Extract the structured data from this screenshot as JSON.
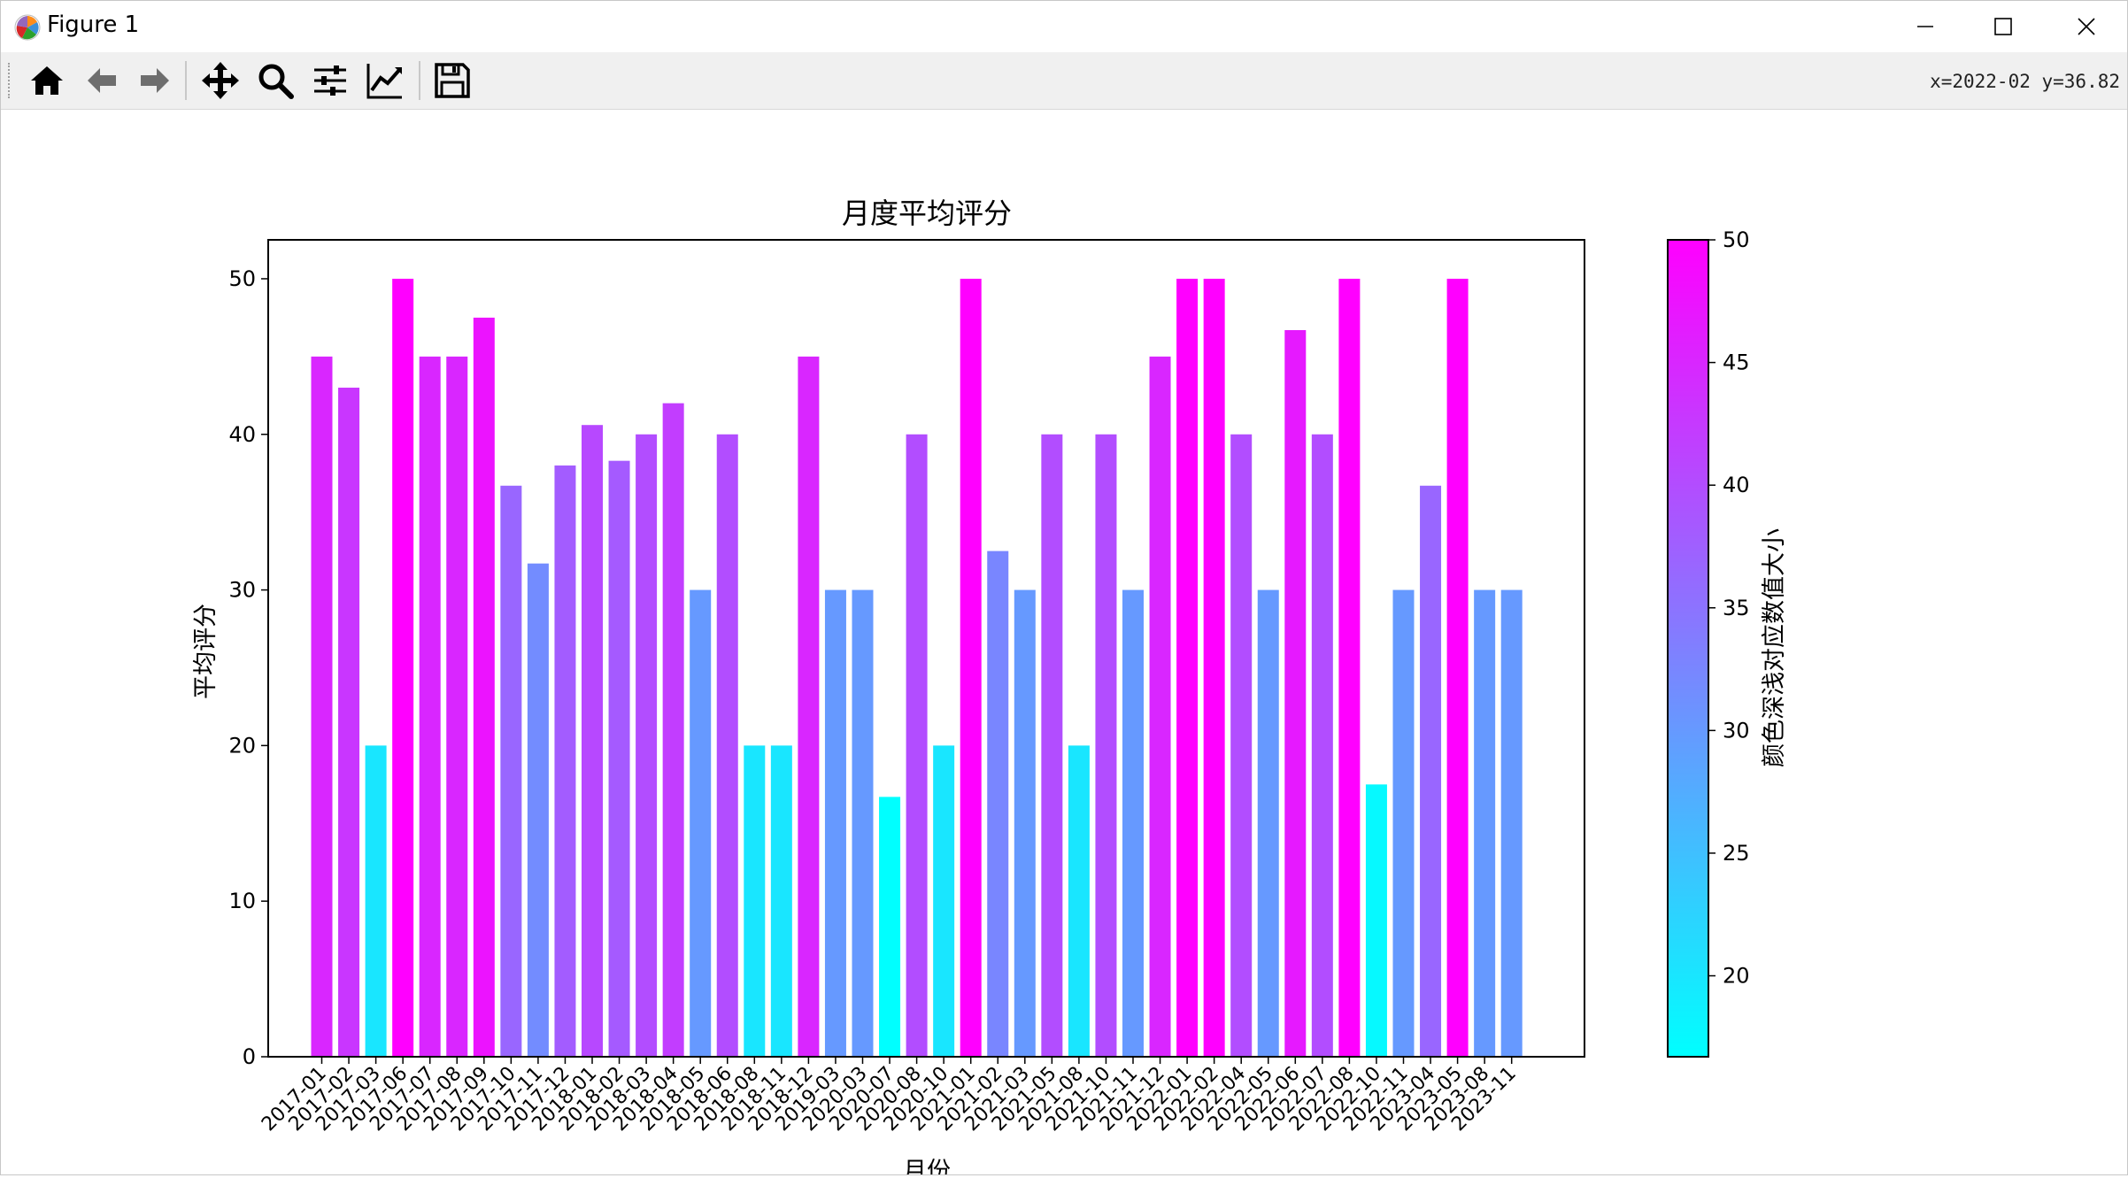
{
  "window": {
    "title": "Figure 1",
    "controls": {
      "minimize": "minimize-icon",
      "maximize": "maximize-icon",
      "close": "close-icon"
    }
  },
  "toolbar": {
    "tools": [
      {
        "name": "home-icon"
      },
      {
        "name": "back-icon"
      },
      {
        "name": "forward-icon"
      },
      {
        "name": "pan-icon"
      },
      {
        "name": "zoom-icon"
      },
      {
        "name": "configure-subplots-icon"
      },
      {
        "name": "edit-axis-icon"
      },
      {
        "name": "save-icon"
      }
    ],
    "coordinates": "x=2022-02 y=36.82"
  },
  "chart_data": {
    "type": "bar",
    "title": "月度平均评分",
    "xlabel": "月份",
    "ylabel": "平均评分",
    "ylim": [
      0,
      52.5
    ],
    "yticks": [
      0,
      10,
      20,
      30,
      40,
      50
    ],
    "grid": false,
    "categories": [
      "2017-01",
      "2017-02",
      "2017-03",
      "2017-06",
      "2017-07",
      "2017-08",
      "2017-09",
      "2017-10",
      "2017-11",
      "2017-12",
      "2018-01",
      "2018-02",
      "2018-03",
      "2018-04",
      "2018-05",
      "2018-06",
      "2018-08",
      "2018-11",
      "2018-12",
      "2019-03",
      "2020-03",
      "2020-07",
      "2020-08",
      "2020-10",
      "2021-01",
      "2021-02",
      "2021-03",
      "2021-05",
      "2021-08",
      "2021-10",
      "2021-11",
      "2021-12",
      "2022-01",
      "2022-02",
      "2022-04",
      "2022-05",
      "2022-06",
      "2022-07",
      "2022-08",
      "2022-10",
      "2022-11",
      "2023-04",
      "2023-05",
      "2023-08",
      "2023-11"
    ],
    "values": [
      45,
      43,
      20,
      50,
      45,
      45,
      47.5,
      36.7,
      31.7,
      38,
      40.6,
      38.3,
      40,
      42,
      30,
      40,
      20,
      20,
      45,
      30,
      30,
      16.7,
      40,
      20,
      50,
      32.5,
      30,
      40,
      20,
      40,
      30,
      45,
      50,
      50,
      40,
      30,
      46.7,
      40,
      50,
      17.5,
      30,
      36.7,
      50,
      30,
      30
    ],
    "colormap": "cool",
    "colors": {
      "low": "#00ffff",
      "high": "#ff00ff"
    },
    "colorbar": {
      "label": "颜色深浅对应数值大小",
      "min": 16.7,
      "max": 50,
      "ticks": [
        20,
        25,
        30,
        35,
        40,
        45,
        50
      ]
    }
  }
}
